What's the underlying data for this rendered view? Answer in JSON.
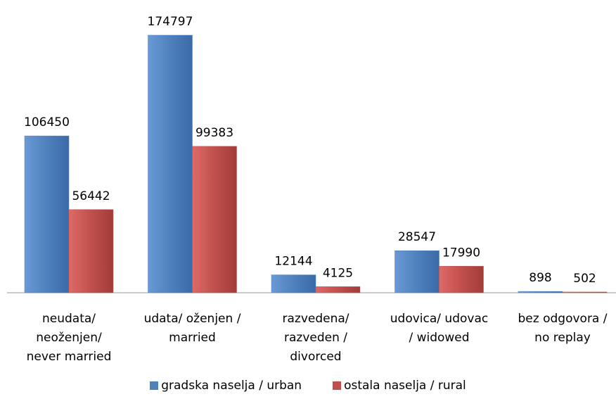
{
  "chart_data": {
    "type": "bar",
    "categories": [
      "neudata/\nneoženjen/\nnever married",
      "udata/ oženjen /\nmarried",
      "razvedena/\nrazveden /\ndivorced",
      "udovica/ udovac\n/ widowed",
      "bez odgovora /\nno replay"
    ],
    "series": [
      {
        "name": "gradska naselja / urban",
        "color": "#4f81bd",
        "values": [
          106450,
          174797,
          12144,
          28547,
          898
        ]
      },
      {
        "name": "ostala naselja / rural",
        "color": "#c0504d",
        "values": [
          56442,
          99383,
          4125,
          17990,
          502
        ]
      }
    ],
    "legend": "bottom"
  }
}
